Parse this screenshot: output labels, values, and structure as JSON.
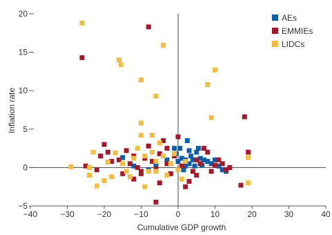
{
  "chart_data": {
    "type": "scatter",
    "xlabel": "Cumulative GDP growth",
    "ylabel": "Inflation rate",
    "xlim": [
      -40,
      40
    ],
    "ylim": [
      -5,
      20
    ],
    "x_ticks": [
      -40,
      -30,
      -20,
      -10,
      0,
      10,
      20,
      30,
      40
    ],
    "y_ticks": [
      -5,
      0,
      5,
      10,
      15,
      20
    ],
    "x_tick_labels": [
      "−40",
      "−30",
      "−20",
      "−10",
      "0",
      "10",
      "20",
      "30",
      "40"
    ],
    "y_tick_labels": [
      "−5",
      "0",
      "5",
      "10",
      "15",
      "20"
    ],
    "grid": false,
    "reference_lines": {
      "x": 0,
      "y": 0
    },
    "legend": "top-right",
    "series": [
      {
        "name": "AEs",
        "color": "#0a5fa8",
        "points": [
          [
            -1,
            2.5
          ],
          [
            -0.5,
            1.8
          ],
          [
            0.5,
            2.5
          ],
          [
            1,
            1.2
          ],
          [
            2,
            1.0
          ],
          [
            2.5,
            3.5
          ],
          [
            3,
            0.5
          ],
          [
            3.5,
            1.5
          ],
          [
            4,
            1.0
          ],
          [
            4.5,
            0.2
          ],
          [
            5,
            2.0
          ],
          [
            5.5,
            2.5
          ],
          [
            6,
            1.2
          ],
          [
            7,
            1.0
          ],
          [
            8,
            0.8
          ],
          [
            9,
            0.5
          ],
          [
            10,
            1.0
          ],
          [
            11,
            0.2
          ],
          [
            12,
            -0.3
          ],
          [
            13,
            -0.5
          ],
          [
            14,
            0.0
          ],
          [
            2,
            0.2
          ],
          [
            1.5,
            -0.3
          ],
          [
            0,
            0.8
          ],
          [
            -2,
            0.5
          ],
          [
            -3,
            1.0
          ],
          [
            -6,
            0.3
          ],
          [
            -12,
            0.2
          ],
          [
            -15,
            1.3
          ],
          [
            -8,
            -0.3
          ],
          [
            3,
            2.2
          ],
          [
            6.5,
            0.3
          ]
        ]
      },
      {
        "name": "EMMIEs",
        "color": "#a3192c",
        "points": [
          [
            -26,
            14.3
          ],
          [
            -8,
            18.3
          ],
          [
            -25,
            0.2
          ],
          [
            -21,
            1.5
          ],
          [
            -19,
            2.0
          ],
          [
            -18,
            0.8
          ],
          [
            -16,
            1.0
          ],
          [
            -14,
            2.2
          ],
          [
            -13,
            0.5
          ],
          [
            -12,
            1.5
          ],
          [
            -11,
            0.0
          ],
          [
            -10,
            -0.5
          ],
          [
            -9,
            1.2
          ],
          [
            -8,
            2.8
          ],
          [
            -7,
            0.8
          ],
          [
            -6,
            -0.2
          ],
          [
            -5,
            1.8
          ],
          [
            -4,
            3.5
          ],
          [
            -3,
            0.5
          ],
          [
            -2,
            -0.8
          ],
          [
            -1,
            1.5
          ],
          [
            0,
            4.0
          ],
          [
            1,
            0.2
          ],
          [
            2,
            -2.5
          ],
          [
            3,
            -1.8
          ],
          [
            4,
            -0.5
          ],
          [
            5,
            1.0
          ],
          [
            6,
            0.5
          ],
          [
            7,
            2.5
          ],
          [
            8,
            2.0
          ],
          [
            9,
            -0.5
          ],
          [
            10,
            0.3
          ],
          [
            11,
            1.0
          ],
          [
            12,
            0.5
          ],
          [
            13,
            -0.3
          ],
          [
            14,
            0.0
          ],
          [
            18,
            6.6
          ],
          [
            19,
            2.0
          ],
          [
            -6,
            -4.5
          ],
          [
            -20,
            3.0
          ],
          [
            -22,
            -0.3
          ],
          [
            -15,
            -0.8
          ],
          [
            -12,
            -1.5
          ],
          [
            -10,
            -0.8
          ],
          [
            -5,
            -2.0
          ],
          [
            -3,
            2.5
          ],
          [
            5,
            -1.0
          ],
          [
            17,
            -2.3
          ]
        ]
      },
      {
        "name": "LIDCs",
        "color": "#f2bd45",
        "points": [
          [
            -26,
            18.8
          ],
          [
            -4,
            15.9
          ],
          [
            -16,
            14.0
          ],
          [
            -15.5,
            13.4
          ],
          [
            -10,
            11.4
          ],
          [
            -6,
            9.3
          ],
          [
            10,
            12.7
          ],
          [
            8,
            10.8
          ],
          [
            9,
            6.5
          ],
          [
            -10,
            5.8
          ],
          [
            -10,
            4.2
          ],
          [
            -29,
            0.1
          ],
          [
            -23,
            2.0
          ],
          [
            -24,
            -1.0
          ],
          [
            -22,
            -2.4
          ],
          [
            -20,
            -1.7
          ],
          [
            -19,
            0.7
          ],
          [
            -17,
            1.9
          ],
          [
            -15,
            0.5
          ],
          [
            -14,
            -0.5
          ],
          [
            -12,
            1.2
          ],
          [
            -11,
            2.5
          ],
          [
            -9,
            1.5
          ],
          [
            -8,
            -0.5
          ],
          [
            -7,
            2.0
          ],
          [
            -6,
            0.8
          ],
          [
            -5,
            3.2
          ],
          [
            -4,
            1.5
          ],
          [
            -3,
            -1.0
          ],
          [
            -2,
            0.5
          ],
          [
            -1,
            1.8
          ],
          [
            0,
            -0.3
          ],
          [
            1,
            -1.5
          ],
          [
            2,
            0.8
          ],
          [
            19,
            1.3
          ],
          [
            19,
            -2.0
          ],
          [
            -13,
            -1.2
          ],
          [
            -9,
            -2.5
          ],
          [
            -7,
            4.2
          ],
          [
            -18,
            -1.2
          ],
          [
            -24,
            0.0
          ],
          [
            -6,
            -0.5
          ]
        ]
      }
    ]
  }
}
